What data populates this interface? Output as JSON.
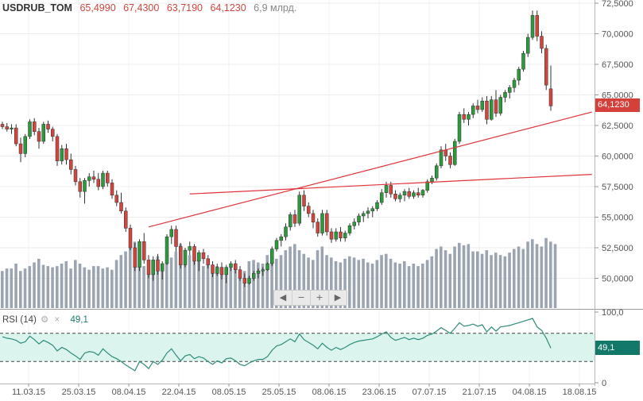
{
  "header": {
    "symbol": "USDRUB_TOM",
    "open": "65,4990",
    "high": "67,4300",
    "low": "63,7190",
    "close": "64,1230",
    "volume": "6,9 млрд."
  },
  "rsi_header": {
    "label": "RSI (14)",
    "settings_icon": "gear-icon",
    "close_icon": "close-icon",
    "value": "49,1"
  },
  "current_price_label": "64,1230",
  "current_rsi_label": "49,1",
  "navigation": {
    "prev": "◀",
    "zoom_out": "−",
    "zoom_in": "+",
    "next": "▶"
  },
  "colors": {
    "up": "#2c9a3c",
    "down": "#d0463e",
    "volume": "#9aa5b1",
    "trendline": "#e0343a",
    "rsi_line": "#2e8b7a",
    "rsi_band": "#dbf5ee",
    "price_label_bg": "#d6403a",
    "rsi_label_bg": "#12786a"
  },
  "chart_data": {
    "type": "candlestick",
    "ylim": [
      47.5,
      72.5
    ],
    "yticks": [
      "72,5000",
      "70,0000",
      "67,5000",
      "65,0000",
      "62,5000",
      "60,0000",
      "57,5000",
      "55,0000",
      "52,5000",
      "50,0000"
    ],
    "x_labels": [
      "11.03.15",
      "25.03.15",
      "08.04.15",
      "22.04.15",
      "08.05.15",
      "25.05.15",
      "08.06.15",
      "23.06.15",
      "07.07.15",
      "21.07.15",
      "04.08.15",
      "18.08.15"
    ],
    "candles": [
      [
        62.6,
        62.8,
        62.2,
        62.4
      ],
      [
        62.4,
        62.7,
        62.0,
        62.2
      ],
      [
        62.2,
        62.6,
        61.8,
        62.3
      ],
      [
        62.3,
        62.6,
        60.8,
        61.0
      ],
      [
        61.0,
        61.5,
        59.5,
        60.2
      ],
      [
        60.2,
        61.8,
        59.9,
        61.6
      ],
      [
        61.6,
        63.0,
        61.4,
        62.8
      ],
      [
        62.8,
        63.1,
        61.7,
        62.0
      ],
      [
        62.0,
        62.3,
        60.6,
        61.2
      ],
      [
        61.2,
        62.8,
        61.0,
        62.6
      ],
      [
        62.6,
        62.9,
        61.9,
        62.2
      ],
      [
        62.2,
        62.4,
        61.2,
        61.6
      ],
      [
        61.6,
        61.8,
        59.2,
        59.6
      ],
      [
        59.6,
        60.9,
        59.3,
        60.6
      ],
      [
        60.6,
        61.0,
        59.3,
        59.7
      ],
      [
        59.7,
        60.2,
        58.5,
        58.9
      ],
      [
        58.9,
        59.2,
        57.6,
        57.9
      ],
      [
        57.9,
        58.2,
        56.6,
        57.1
      ],
      [
        57.1,
        58.2,
        56.1,
        58.0
      ],
      [
        58.0,
        58.6,
        57.5,
        58.3
      ],
      [
        58.3,
        58.8,
        57.8,
        58.1
      ],
      [
        58.1,
        58.6,
        57.2,
        57.5
      ],
      [
        57.5,
        58.8,
        57.3,
        58.6
      ],
      [
        58.6,
        58.8,
        57.5,
        57.8
      ],
      [
        57.8,
        58.1,
        56.5,
        56.8
      ],
      [
        56.8,
        57.2,
        55.9,
        56.2
      ],
      [
        56.2,
        57.0,
        55.3,
        55.5
      ],
      [
        55.5,
        55.8,
        53.8,
        54.1
      ],
      [
        54.1,
        54.4,
        52.3,
        52.5
      ],
      [
        52.5,
        52.9,
        50.6,
        50.9
      ],
      [
        50.9,
        53.2,
        50.6,
        53.0
      ],
      [
        53.0,
        53.7,
        51.2,
        51.5
      ],
      [
        51.5,
        51.9,
        50.0,
        50.3
      ],
      [
        50.3,
        51.8,
        49.8,
        51.5
      ],
      [
        51.5,
        52.0,
        50.3,
        50.6
      ],
      [
        50.6,
        51.4,
        49.9,
        51.2
      ],
      [
        51.2,
        53.6,
        51.1,
        53.4
      ],
      [
        53.4,
        54.3,
        52.8,
        54.0
      ],
      [
        54.0,
        54.3,
        52.2,
        52.6
      ],
      [
        52.6,
        52.9,
        50.8,
        51.1
      ],
      [
        51.1,
        52.5,
        50.9,
        52.3
      ],
      [
        52.3,
        53.0,
        51.9,
        52.6
      ],
      [
        52.6,
        52.8,
        51.1,
        51.4
      ],
      [
        51.4,
        52.3,
        50.6,
        52.1
      ],
      [
        52.1,
        52.4,
        51.2,
        51.6
      ],
      [
        51.6,
        51.9,
        50.8,
        51.1
      ],
      [
        51.1,
        51.4,
        50.1,
        50.4
      ],
      [
        50.4,
        51.2,
        50.2,
        50.9
      ],
      [
        50.9,
        51.3,
        49.9,
        50.3
      ],
      [
        50.3,
        51.1,
        49.6,
        50.9
      ],
      [
        50.9,
        51.4,
        50.6,
        51.2
      ],
      [
        51.2,
        51.5,
        50.4,
        50.7
      ],
      [
        50.7,
        51.0,
        49.8,
        50.0
      ],
      [
        50.0,
        50.4,
        49.3,
        49.6
      ],
      [
        49.6,
        50.2,
        49.5,
        50.0
      ],
      [
        50.0,
        50.6,
        49.8,
        50.4
      ],
      [
        50.4,
        50.8,
        50.0,
        50.6
      ],
      [
        50.6,
        50.9,
        50.2,
        50.7
      ],
      [
        50.7,
        51.3,
        50.6,
        51.2
      ],
      [
        51.2,
        52.6,
        51.0,
        52.4
      ],
      [
        52.4,
        53.3,
        52.2,
        53.1
      ],
      [
        53.1,
        53.6,
        52.6,
        53.4
      ],
      [
        53.4,
        54.5,
        53.1,
        54.2
      ],
      [
        54.2,
        55.4,
        53.9,
        55.2
      ],
      [
        55.2,
        55.6,
        54.2,
        54.5
      ],
      [
        54.5,
        57.1,
        54.3,
        56.8
      ],
      [
        56.8,
        57.2,
        55.5,
        55.9
      ],
      [
        55.9,
        56.2,
        55.0,
        55.3
      ],
      [
        55.3,
        55.6,
        54.1,
        54.6
      ],
      [
        54.6,
        54.9,
        53.4,
        53.7
      ],
      [
        53.7,
        55.6,
        53.5,
        55.3
      ],
      [
        55.3,
        55.6,
        53.5,
        53.8
      ],
      [
        53.8,
        54.1,
        52.9,
        53.2
      ],
      [
        53.2,
        54.1,
        53.0,
        53.8
      ],
      [
        53.8,
        54.2,
        53.0,
        53.3
      ],
      [
        53.3,
        53.9,
        53.0,
        53.7
      ],
      [
        53.7,
        54.5,
        53.5,
        54.3
      ],
      [
        54.3,
        54.9,
        54.0,
        54.6
      ],
      [
        54.6,
        55.3,
        54.3,
        55.1
      ],
      [
        55.1,
        55.5,
        54.6,
        55.3
      ],
      [
        55.3,
        55.8,
        54.9,
        55.5
      ],
      [
        55.5,
        55.9,
        55.0,
        55.7
      ],
      [
        55.7,
        56.4,
        55.5,
        56.2
      ],
      [
        56.2,
        57.3,
        56.0,
        57.0
      ],
      [
        57.0,
        57.9,
        56.6,
        57.6
      ],
      [
        57.6,
        57.9,
        56.6,
        56.9
      ],
      [
        56.9,
        57.2,
        56.3,
        56.5
      ],
      [
        56.5,
        57.0,
        56.2,
        56.8
      ],
      [
        56.8,
        57.3,
        56.3,
        57.1
      ],
      [
        57.1,
        57.4,
        56.5,
        56.7
      ],
      [
        56.7,
        57.2,
        56.5,
        57.0
      ],
      [
        57.0,
        57.4,
        56.6,
        56.8
      ],
      [
        56.8,
        57.3,
        56.6,
        57.2
      ],
      [
        57.2,
        58.1,
        57.0,
        57.9
      ],
      [
        57.9,
        58.4,
        57.7,
        58.2
      ],
      [
        58.2,
        59.4,
        58.0,
        59.2
      ],
      [
        59.2,
        60.8,
        59.0,
        60.5
      ],
      [
        60.5,
        61.0,
        59.6,
        60.0
      ],
      [
        60.0,
        60.3,
        59.0,
        59.3
      ],
      [
        59.3,
        61.4,
        59.2,
        61.2
      ],
      [
        61.2,
        63.6,
        61.0,
        63.4
      ],
      [
        63.4,
        63.9,
        62.7,
        63.0
      ],
      [
        63.0,
        63.6,
        62.5,
        63.4
      ],
      [
        63.4,
        64.3,
        63.1,
        64.1
      ],
      [
        64.1,
        64.6,
        63.5,
        63.8
      ],
      [
        63.8,
        64.8,
        63.6,
        64.5
      ],
      [
        64.5,
        64.9,
        62.6,
        63.0
      ],
      [
        63.0,
        64.9,
        62.9,
        64.6
      ],
      [
        64.6,
        65.4,
        63.2,
        63.5
      ],
      [
        63.5,
        65.0,
        63.3,
        64.8
      ],
      [
        64.8,
        65.4,
        64.4,
        65.2
      ],
      [
        65.2,
        65.8,
        64.7,
        65.6
      ],
      [
        65.6,
        66.4,
        65.2,
        66.2
      ],
      [
        66.2,
        67.3,
        65.8,
        67.1
      ],
      [
        67.1,
        68.6,
        66.9,
        68.4
      ],
      [
        68.4,
        70.0,
        68.1,
        69.7
      ],
      [
        69.7,
        71.9,
        69.5,
        71.5
      ],
      [
        71.5,
        71.9,
        69.4,
        69.8
      ],
      [
        69.8,
        70.2,
        68.4,
        68.8
      ],
      [
        68.8,
        69.1,
        65.4,
        65.8
      ],
      [
        65.5,
        67.4,
        63.7,
        64.1
      ]
    ],
    "volume": [
      50.6,
      50.8,
      50.8,
      51.2,
      50.6,
      50.8,
      51.0,
      51.3,
      51.6,
      51.1,
      51.0,
      50.9,
      51.0,
      51.2,
      51.4,
      50.8,
      51.5,
      51.2,
      50.9,
      50.7,
      51.0,
      51.0,
      50.8,
      50.9,
      50.7,
      51.5,
      51.9,
      52.2,
      52.8,
      53.0,
      51.7,
      51.0,
      51.4,
      51.0,
      51.8,
      51.2,
      51.4,
      51.7,
      52.2,
      52.8,
      51.6,
      51.9,
      52.0,
      51.5,
      51.0,
      51.3,
      50.7,
      51.0,
      50.8,
      50.8,
      50.9,
      50.7,
      50.5,
      50.6,
      51.4,
      51.5,
      51.3,
      51.2,
      51.9,
      52.2,
      51.6,
      51.9,
      52.3,
      52.6,
      52.8,
      52.3,
      52.0,
      51.7,
      51.5,
      52.3,
      52.6,
      51.9,
      51.7,
      51.4,
      51.3,
      51.6,
      51.8,
      51.7,
      51.5,
      51.6,
      51.3,
      51.2,
      51.5,
      51.9,
      52.0,
      51.6,
      51.3,
      51.2,
      51.4,
      51.0,
      51.2,
      51.0,
      51.2,
      51.5,
      51.8,
      52.4,
      52.6,
      52.3,
      52.0,
      52.6,
      52.9,
      52.7,
      52.8,
      52.2,
      52.2,
      52.0,
      52.3,
      51.9,
      52.1,
      51.9,
      51.8,
      52.1,
      52.4,
      52.6,
      52.4,
      53.0,
      53.2,
      52.8,
      52.6,
      53.3,
      53.0,
      52.8
    ],
    "rsi": {
      "ylim": [
        0,
        100
      ],
      "yticks": [
        "100,0",
        "0"
      ],
      "upper_level": 70,
      "lower_level": 30,
      "values": [
        65,
        63,
        62,
        60,
        56,
        58,
        66,
        61,
        55,
        60,
        57,
        53,
        45,
        50,
        47,
        42,
        38,
        33,
        42,
        44,
        43,
        39,
        48,
        42,
        37,
        34,
        30,
        25,
        21,
        17,
        30,
        26,
        20,
        30,
        26,
        32,
        42,
        48,
        39,
        31,
        38,
        40,
        34,
        37,
        35,
        30,
        26,
        31,
        28,
        34,
        35,
        31,
        26,
        24,
        28,
        31,
        33,
        33,
        37,
        46,
        52,
        54,
        58,
        62,
        58,
        69,
        61,
        57,
        53,
        48,
        56,
        50,
        46,
        50,
        47,
        50,
        54,
        57,
        59,
        60,
        61,
        62,
        65,
        69,
        72,
        64,
        60,
        62,
        64,
        61,
        63,
        61,
        63,
        67,
        69,
        73,
        78,
        74,
        70,
        77,
        85,
        80,
        81,
        83,
        80,
        82,
        72,
        79,
        73,
        79,
        80,
        81,
        83,
        85,
        87,
        89,
        91,
        79,
        74,
        63,
        49
      ]
    },
    "trendlines": [
      {
        "x1_index": 32,
        "y1": 54.2,
        "x2_index": 129,
        "y2": 63.6
      },
      {
        "x1_index": 41,
        "y1": 56.9,
        "x2_index": 129,
        "y2": 58.5
      }
    ]
  }
}
